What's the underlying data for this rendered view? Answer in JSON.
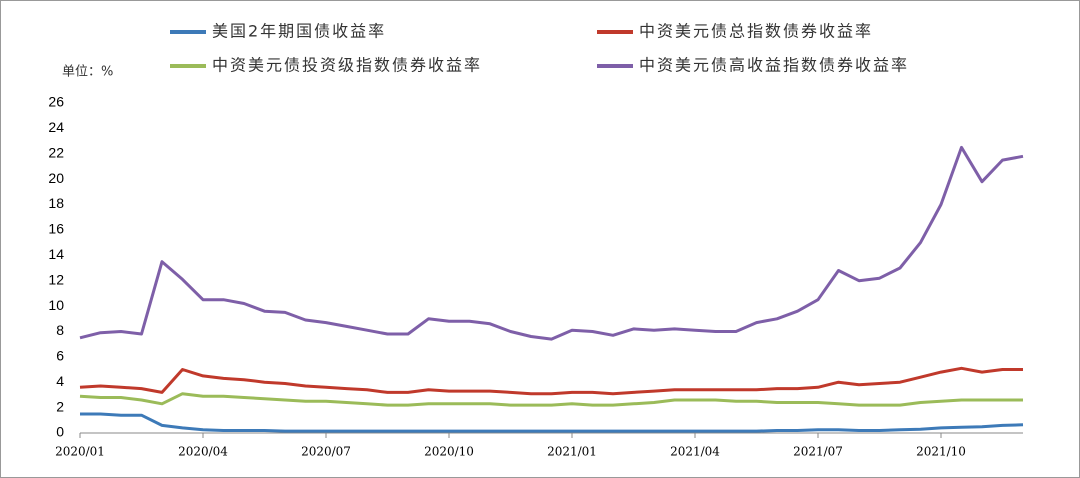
{
  "chart_data": {
    "type": "line",
    "y_label": "单位：%",
    "categories": [
      "2020/01",
      null,
      null,
      null,
      null,
      null,
      "2020/04",
      null,
      null,
      null,
      null,
      null,
      "2020/07",
      null,
      null,
      null,
      null,
      null,
      "2020/10",
      null,
      null,
      null,
      null,
      null,
      "2021/01",
      null,
      null,
      null,
      null,
      null,
      "2021/04",
      null,
      null,
      null,
      null,
      null,
      "2021/07",
      null,
      null,
      null,
      null,
      null,
      "2021/10",
      null,
      null,
      null,
      null
    ],
    "series": [
      {
        "name": "美国2年期国债收益率",
        "color": "#3d7ab8",
        "values": [
          1.5,
          1.5,
          1.4,
          1.4,
          0.6,
          0.4,
          0.25,
          0.2,
          0.2,
          0.2,
          0.15,
          0.15,
          0.15,
          0.15,
          0.15,
          0.15,
          0.15,
          0.15,
          0.15,
          0.15,
          0.15,
          0.15,
          0.15,
          0.15,
          0.15,
          0.15,
          0.15,
          0.15,
          0.15,
          0.15,
          0.15,
          0.15,
          0.15,
          0.15,
          0.2,
          0.2,
          0.25,
          0.25,
          0.2,
          0.2,
          0.25,
          0.3,
          0.4,
          0.45,
          0.5,
          0.6,
          0.65
        ]
      },
      {
        "name": "中资美元债总指数债券收益率",
        "color": "#c0392b",
        "values": [
          3.6,
          3.7,
          3.6,
          3.5,
          3.2,
          5.0,
          4.5,
          4.3,
          4.2,
          4.0,
          3.9,
          3.7,
          3.6,
          3.5,
          3.4,
          3.2,
          3.2,
          3.4,
          3.3,
          3.3,
          3.3,
          3.2,
          3.1,
          3.1,
          3.2,
          3.2,
          3.1,
          3.2,
          3.3,
          3.4,
          3.4,
          3.4,
          3.4,
          3.4,
          3.5,
          3.5,
          3.6,
          4.0,
          3.8,
          3.9,
          4.0,
          4.4,
          4.8,
          5.1,
          4.8,
          5.0,
          5.0
        ]
      },
      {
        "name": "中资美元债投资级指数债券收益率",
        "color": "#9bbb59",
        "values": [
          2.9,
          2.8,
          2.8,
          2.6,
          2.3,
          3.1,
          2.9,
          2.9,
          2.8,
          2.7,
          2.6,
          2.5,
          2.5,
          2.4,
          2.3,
          2.2,
          2.2,
          2.3,
          2.3,
          2.3,
          2.3,
          2.2,
          2.2,
          2.2,
          2.3,
          2.2,
          2.2,
          2.3,
          2.4,
          2.6,
          2.6,
          2.6,
          2.5,
          2.5,
          2.4,
          2.4,
          2.4,
          2.3,
          2.2,
          2.2,
          2.2,
          2.4,
          2.5,
          2.6,
          2.6,
          2.6,
          2.6
        ]
      },
      {
        "name": "中资美元债高收益指数债券收益率",
        "color": "#7e5fa8",
        "values": [
          7.5,
          7.9,
          8.0,
          7.8,
          13.5,
          12.1,
          10.5,
          10.5,
          10.2,
          9.6,
          9.5,
          8.9,
          8.7,
          8.4,
          8.1,
          7.8,
          7.8,
          9.0,
          8.8,
          8.8,
          8.6,
          8.0,
          7.6,
          7.4,
          8.1,
          8.0,
          7.7,
          8.2,
          8.1,
          8.2,
          8.1,
          8.0,
          8.0,
          8.7,
          9.0,
          9.6,
          10.5,
          12.8,
          12.0,
          12.2,
          13.0,
          15.0,
          18.0,
          22.5,
          19.8,
          21.5,
          21.8
        ]
      }
    ],
    "ylim": [
      0,
      26
    ],
    "yticks": [
      0,
      2,
      4,
      6,
      8,
      10,
      12,
      14,
      16,
      18,
      20,
      22,
      24,
      26
    ]
  }
}
